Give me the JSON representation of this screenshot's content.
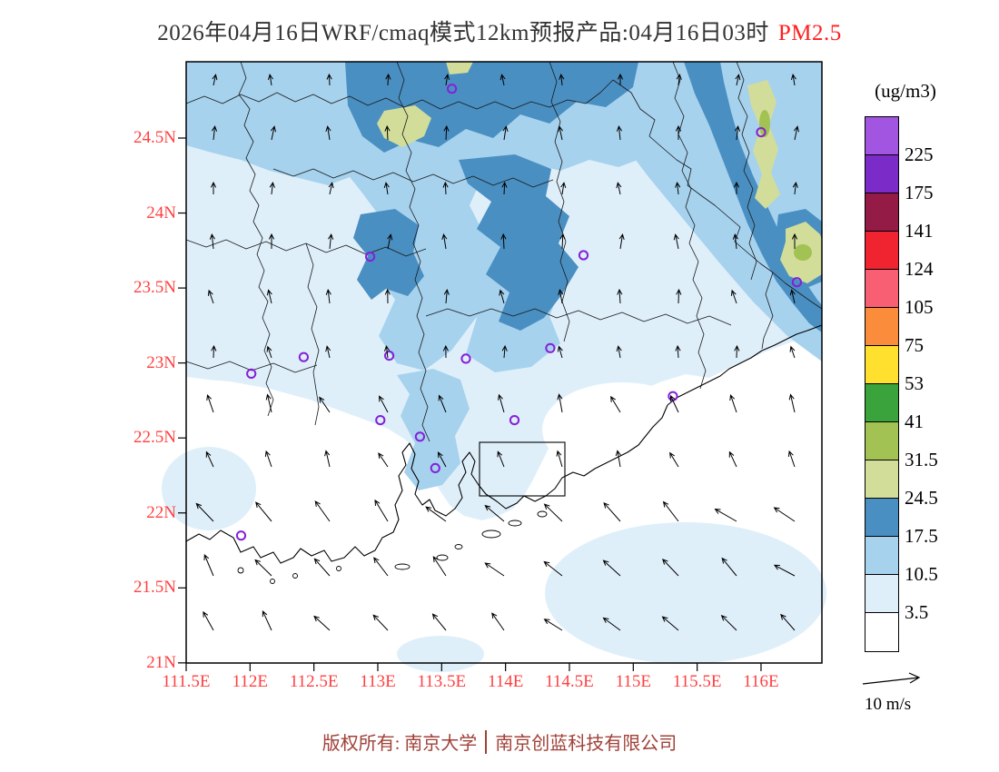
{
  "title": {
    "text": "2026年04月16日WRF/cmaq模式12km预报产品:04月16日03时",
    "species": "PM2.5"
  },
  "colorbar": {
    "unit_label": "(ug/m3)",
    "levels": [
      "225",
      "175",
      "141",
      "124",
      "105",
      "75",
      "53",
      "41",
      "31.5",
      "24.5",
      "17.5",
      "10.5",
      "3.5"
    ],
    "colors": [
      "#A155E0",
      "#7B2CC8",
      "#941B45",
      "#EF2430",
      "#F85F72",
      "#FA8C3C",
      "#FFE02E",
      "#3BA33C",
      "#A2C254",
      "#D2DD9A",
      "#4A8FC2",
      "#A6D2EE",
      "#DFEFFA",
      "#FFFFFF"
    ]
  },
  "axes": {
    "x_labels": [
      "111.5E",
      "112E",
      "112.5E",
      "113E",
      "113.5E",
      "114E",
      "114.5E",
      "115E",
      "115.5E",
      "116E"
    ],
    "y_labels": [
      "24.5N",
      "24N",
      "23.5N",
      "23N",
      "22.5N",
      "22N",
      "21.5N",
      "21N"
    ]
  },
  "wind": {
    "reference_label": "10 m/s",
    "zones": [
      {
        "y_max": 0.4,
        "angle": 90,
        "length": 14
      },
      {
        "y_max": 0.58,
        "angle": 97,
        "length": 15
      },
      {
        "y_max": 0.72,
        "angle": 112,
        "length": 19
      },
      {
        "y_max": 1.01,
        "angle": 124,
        "east_turn": 20,
        "length": 25
      }
    ]
  },
  "footer": {
    "prefix": "版权所有: 南京大学",
    "company": "南京创蓝科技有限公司"
  },
  "chart_data": {
    "type": "heatmap",
    "subtype": "filled_contour_map_with_wind_vectors",
    "variable": "PM2.5",
    "unit": "ug/m3",
    "date_label": "2026年04月16日",
    "model_label": "WRF/cmaq模式12km预报产品",
    "valid_time_label": "04月16日03时",
    "lon_range": [
      111.5,
      116.5
    ],
    "lat_range": [
      21.0,
      25.0
    ],
    "lon_ticks": [
      111.5,
      112,
      112.5,
      113,
      113.5,
      114,
      114.5,
      115,
      115.5,
      116
    ],
    "lat_ticks": [
      21,
      21.5,
      22,
      22.5,
      23,
      23.5,
      24,
      24.5
    ],
    "contour_levels_ug_m3": [
      3.5,
      10.5,
      17.5,
      24.5,
      31.5,
      41,
      53,
      75,
      105,
      124,
      141,
      175,
      225
    ],
    "field_summary": [
      {
        "region": "northern and northeastern inland (23.3N-25N)",
        "pm25_range": "10.5-24.5"
      },
      {
        "region": "cores over north-center and a NE diagonal band toward 116E",
        "pm25_range": "17.5-24.5"
      },
      {
        "region": "small khaki/olive patches north-center top edge and near 116E",
        "pm25_range": "24.5-41"
      },
      {
        "region": "Pearl River Delta streak",
        "pm25_range": "10.5-17.5"
      },
      {
        "region": "southwest inland and most coastal sea",
        "pm25_range": "0-10.5"
      },
      {
        "region": "pale-blue patch over far southeastern sea",
        "pm25_range": "3.5-10.5"
      }
    ],
    "wind_summary": "arrows point northward over land (southerly flow); longer arrows point northwestward over the southern sea",
    "wind_reference_m_s": 10,
    "stations": [
      {
        "lon": 113.58,
        "lat": 24.83
      },
      {
        "lon": 116.0,
        "lat": 24.54
      },
      {
        "lon": 112.94,
        "lat": 23.71
      },
      {
        "lon": 114.61,
        "lat": 23.72
      },
      {
        "lon": 116.28,
        "lat": 23.54
      },
      {
        "lon": 112.42,
        "lat": 23.04
      },
      {
        "lon": 113.09,
        "lat": 23.05
      },
      {
        "lon": 113.69,
        "lat": 23.03
      },
      {
        "lon": 114.35,
        "lat": 23.1
      },
      {
        "lon": 112.01,
        "lat": 22.93
      },
      {
        "lon": 115.31,
        "lat": 22.78
      },
      {
        "lon": 113.02,
        "lat": 22.62
      },
      {
        "lon": 113.33,
        "lat": 22.51
      },
      {
        "lon": 113.45,
        "lat": 22.3
      },
      {
        "lon": 114.07,
        "lat": 22.62
      },
      {
        "lon": 111.93,
        "lat": 21.85
      }
    ]
  }
}
